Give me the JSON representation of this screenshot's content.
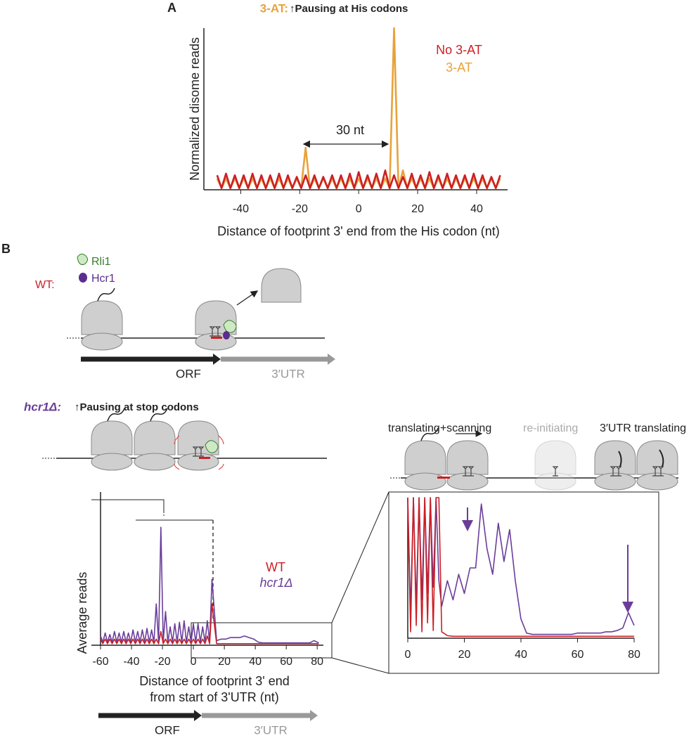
{
  "chart_data": [
    {
      "type": "line",
      "title": "3-AT:",
      "subtitle": "↑Pausing at His codons",
      "xlabel": "Distance of footprint 3' end from the His codon (nt)",
      "ylabel": "Normalized disome reads",
      "annotation": "30 nt",
      "x": [
        -48,
        -46.5,
        -45,
        -43.5,
        -42,
        -40.5,
        -39,
        -37.5,
        -36,
        -34.5,
        -33,
        -31.5,
        -30,
        -28.5,
        -27,
        -25.5,
        -24,
        -22.5,
        -21,
        -19.5,
        -18,
        -16.5,
        -15,
        -13.5,
        -12,
        -10.5,
        -9,
        -7.5,
        -6,
        -4.5,
        -3,
        -1.5,
        0,
        1.5,
        3,
        4.5,
        6,
        7.5,
        9,
        10.5,
        12,
        13.5,
        15,
        16.5,
        18,
        19.5,
        21,
        22.5,
        24,
        25.5,
        27,
        28.5,
        30,
        31.5,
        33,
        34.5,
        36,
        37.5,
        39,
        40.5,
        42,
        43.5,
        45,
        46.5,
        48
      ],
      "series": [
        {
          "name": "No 3-AT",
          "color": "#cc1f24",
          "values": [
            9,
            1,
            10,
            1,
            9,
            1,
            9,
            1,
            10,
            1,
            9,
            1,
            9,
            1,
            10,
            1,
            9,
            1,
            8,
            1,
            9,
            1,
            9,
            1,
            8,
            1,
            9,
            1,
            9,
            1,
            10,
            1,
            11,
            1,
            9,
            1,
            10,
            1,
            12,
            1,
            9,
            1,
            8,
            1,
            10,
            1,
            9,
            1,
            11,
            1,
            9,
            1,
            10,
            1,
            9,
            1,
            9,
            1,
            10,
            1,
            9,
            1,
            8,
            1,
            9
          ]
        },
        {
          "name": "3-AT",
          "color": "#e8a23a",
          "values": [
            7,
            1,
            7,
            1,
            7,
            1,
            7,
            1,
            7,
            1,
            7,
            1,
            7,
            1,
            7,
            1,
            7,
            1,
            7,
            1,
            26,
            1,
            7,
            1,
            7,
            1,
            7,
            1,
            7,
            1,
            7,
            1,
            7,
            1,
            7,
            1,
            7,
            1,
            7,
            1,
            100,
            1,
            12,
            1,
            7,
            1,
            7,
            1,
            7,
            1,
            7,
            1,
            7,
            1,
            7,
            1,
            7,
            1,
            7,
            1,
            7,
            1,
            7,
            1,
            7
          ]
        }
      ],
      "xlim": [
        -52.5,
        50.5
      ],
      "ylim": [
        0,
        100
      ],
      "xticks": [
        -40,
        -20,
        0,
        20,
        40
      ]
    },
    {
      "type": "line",
      "ylabel": "Average reads",
      "xlabel": [
        "Distance of footprint 3' end",
        "from start of 3'UTR (nt)"
      ],
      "x": [
        -60,
        -58.5,
        -57,
        -55.5,
        -54,
        -52.5,
        -51,
        -49.5,
        -48,
        -46.5,
        -45,
        -43.5,
        -42,
        -40.5,
        -39,
        -37.5,
        -36,
        -34.5,
        -33,
        -31.5,
        -30,
        -28.5,
        -27,
        -25.5,
        -24,
        -22.5,
        -21,
        -19.5,
        -18,
        -16.5,
        -15,
        -13.5,
        -12,
        -10.5,
        -9,
        -7.5,
        -6,
        -4.5,
        -3,
        -1.5,
        0,
        1.5,
        3,
        4.5,
        6,
        7.5,
        9,
        10.5,
        12,
        15,
        18,
        21,
        24,
        27,
        30,
        33,
        36,
        39,
        42,
        45,
        48,
        51,
        54,
        57,
        60,
        63,
        66,
        69,
        72,
        75,
        78,
        81
      ],
      "series": [
        {
          "name": "WT",
          "color": "#cc1f24",
          "values": [
            4,
            1,
            4,
            1,
            4,
            1,
            4,
            1,
            4,
            1,
            4,
            1,
            4,
            1,
            4,
            1,
            4,
            1,
            4,
            1,
            4,
            1,
            4,
            1,
            4,
            1,
            9,
            1,
            4,
            1,
            4,
            1,
            4,
            1,
            4,
            1,
            4,
            1,
            4,
            1,
            4,
            1,
            4,
            1,
            4,
            1,
            6,
            1,
            27,
            1,
            1,
            1,
            1,
            1,
            1,
            1,
            1,
            1,
            1,
            1,
            1,
            1,
            1,
            1,
            1,
            1,
            1,
            1,
            1,
            1,
            1,
            1
          ]
        },
        {
          "name": "hcr1Δ",
          "color": "#6a3d9a",
          "values": [
            6,
            2,
            8,
            2,
            7,
            2,
            9,
            2,
            8,
            2,
            9,
            2,
            8,
            2,
            10,
            2,
            9,
            2,
            10,
            2,
            11,
            2,
            10,
            2,
            27,
            2,
            77,
            2,
            22,
            2,
            12,
            2,
            14,
            2,
            15,
            2,
            16,
            2,
            12,
            2,
            14,
            2,
            14,
            2,
            12,
            2,
            16,
            2,
            43,
            3,
            4,
            4,
            5,
            5,
            5,
            6,
            5,
            4,
            2,
            1.5,
            1.5,
            1.5,
            1.5,
            1.5,
            1.5,
            1.5,
            1.5,
            1.5,
            1.5,
            1.5,
            3,
            1.5
          ]
        }
      ],
      "xlim": [
        -60,
        84
      ],
      "ylim": [
        0,
        100
      ],
      "xticks": [
        -60,
        -40,
        -20,
        0,
        20,
        40,
        60,
        80
      ]
    },
    {
      "type": "line",
      "x": [
        0,
        1,
        2,
        3,
        4,
        5,
        6,
        7,
        8,
        9,
        10,
        11,
        12,
        14,
        16,
        18,
        20,
        22,
        24,
        26,
        28,
        30,
        32,
        34,
        36,
        38,
        40,
        42,
        44,
        46,
        48,
        50,
        52,
        54,
        56,
        58,
        60,
        62,
        64,
        66,
        68,
        70,
        72,
        74,
        76,
        78,
        80
      ],
      "series": [
        {
          "color": "#cc1f24",
          "values": [
            110,
            5,
            110,
            10,
            110,
            5,
            110,
            12,
            110,
            6,
            110,
            110,
            5,
            2,
            1.5,
            1.5,
            1.5,
            1.5,
            1.5,
            1.5,
            1.5,
            1.5,
            1.5,
            1.5,
            1.5,
            1.5,
            1.5,
            1.5,
            1.5,
            1.5,
            1.5,
            1.5,
            1.5,
            1.5,
            1.5,
            1.5,
            1.5,
            1.5,
            1.5,
            1.5,
            1.5,
            1.5,
            1.5,
            1.5,
            1.5,
            1.5,
            1.5
          ]
        },
        {
          "color": "#6a3d9a",
          "values": [
            110,
            20,
            110,
            25,
            110,
            30,
            110,
            35,
            110,
            40,
            110,
            45,
            25,
            45,
            30,
            50,
            35,
            55,
            55,
            105,
            70,
            50,
            90,
            60,
            85,
            45,
            15,
            4,
            3,
            3,
            3,
            3,
            3,
            3,
            3,
            3,
            4,
            4,
            4,
            4,
            4,
            5,
            5,
            6,
            8,
            20,
            10
          ]
        }
      ],
      "xlim": [
        0,
        80
      ],
      "ylim": [
        0,
        110
      ],
      "xticks": [
        0,
        20,
        40,
        60,
        80
      ]
    }
  ],
  "labels": {
    "panel_a": "A",
    "panel_b": "B",
    "rli1": "Rli1",
    "hcr1": "Hcr1",
    "wt": "WT:",
    "orf_top": "ORF",
    "utr_top": "3′UTR",
    "mutant": "hcr1Δ:",
    "mutant_title": "↑Pausing at stop codons",
    "translating": "translating+scanning",
    "reinitiating": "re-initiating",
    "utr_translating": "3′UTR translating",
    "orf_bottom": "ORF",
    "utr_bottom": "3′UTR"
  }
}
